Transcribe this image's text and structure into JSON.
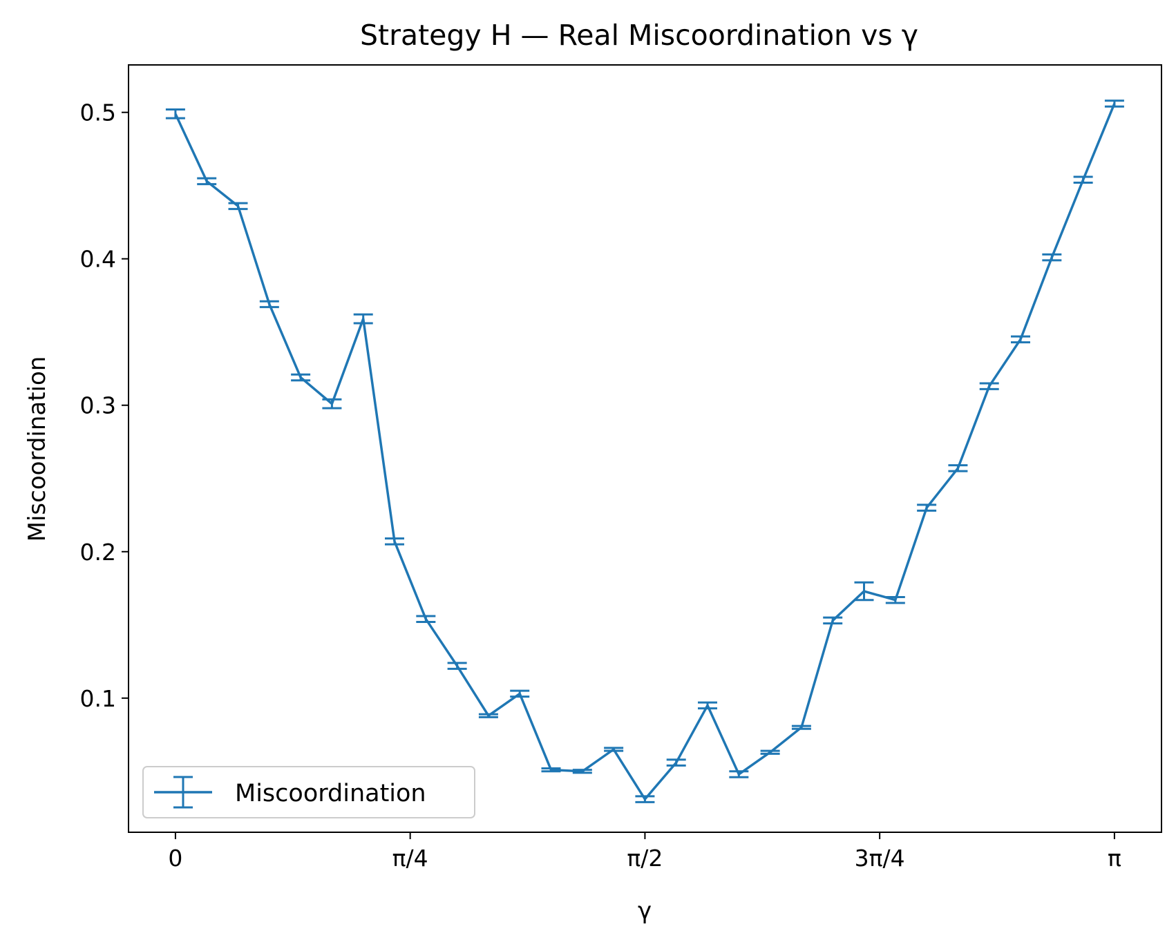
{
  "chart_data": {
    "type": "line",
    "title": "Strategy H — Real Miscoordination vs γ",
    "xlabel": "γ",
    "ylabel": "Miscoordination",
    "x_ticks": [
      {
        "value": 0,
        "label": "0"
      },
      {
        "value": 0.785398,
        "label": "π/4"
      },
      {
        "value": 1.570796,
        "label": "π/2"
      },
      {
        "value": 2.356194,
        "label": "3π/4"
      },
      {
        "value": 3.141593,
        "label": "π"
      }
    ],
    "y_ticks": [
      {
        "value": 0.1,
        "label": "0.1"
      },
      {
        "value": 0.2,
        "label": "0.2"
      },
      {
        "value": 0.3,
        "label": "0.3"
      },
      {
        "value": 0.4,
        "label": "0.4"
      },
      {
        "value": 0.5,
        "label": "0.5"
      }
    ],
    "xlim": [
      -0.157,
      3.299
    ],
    "ylim": [
      0.0084,
      0.5324
    ],
    "grid": false,
    "legend": {
      "position": "lower-left",
      "entries": [
        "Miscoordination"
      ]
    },
    "color": "#1f77b4",
    "series": [
      {
        "name": "Miscoordination",
        "x": [
          0,
          0.1047,
          0.2094,
          0.3142,
          0.4189,
          0.5236,
          0.6283,
          0.733,
          0.8378,
          0.9425,
          1.0472,
          1.1519,
          1.2566,
          1.3614,
          1.4661,
          1.5708,
          1.6755,
          1.7802,
          1.885,
          1.9897,
          2.0944,
          2.1991,
          2.3038,
          2.4086,
          2.5133,
          2.618,
          2.7227,
          2.8274,
          2.9322,
          3.0369,
          3.1416
        ],
        "y": [
          0.499,
          0.453,
          0.436,
          0.369,
          0.319,
          0.301,
          0.359,
          0.207,
          0.154,
          0.122,
          0.088,
          0.103,
          0.051,
          0.05,
          0.065,
          0.031,
          0.056,
          0.095,
          0.048,
          0.063,
          0.08,
          0.153,
          0.173,
          0.167,
          0.23,
          0.257,
          0.313,
          0.345,
          0.401,
          0.454,
          0.506
        ],
        "err": [
          0.003,
          0.002,
          0.002,
          0.002,
          0.002,
          0.003,
          0.003,
          0.002,
          0.002,
          0.002,
          0.001,
          0.002,
          0.001,
          0.001,
          0.001,
          0.002,
          0.002,
          0.002,
          0.002,
          0.001,
          0.001,
          0.002,
          0.006,
          0.002,
          0.002,
          0.002,
          0.002,
          0.002,
          0.002,
          0.002,
          0.002
        ]
      }
    ]
  }
}
